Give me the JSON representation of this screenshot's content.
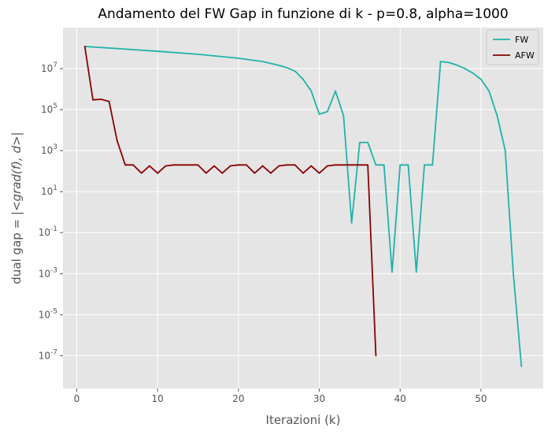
{
  "chart_data": {
    "type": "line",
    "title": "Andamento del FW Gap in funzione di k - p=0.8, alpha=1000",
    "xlabel": "Iterazioni (k)",
    "ylabel_prefix": "dual gap = |",
    "ylabel_math": "<grad(f), d>",
    "ylabel_suffix": "|",
    "x_scale": "linear",
    "y_scale": "log",
    "xlim": [
      -1.7,
      57.7
    ],
    "ylim_exponent": [
      -8.6,
      9.0
    ],
    "x_ticks": [
      0,
      10,
      20,
      30,
      40,
      50
    ],
    "y_ticks": [
      {
        "base": "10",
        "exp": "-7",
        "value": -7
      },
      {
        "base": "10",
        "exp": "-5",
        "value": -5
      },
      {
        "base": "10",
        "exp": "-3",
        "value": -3
      },
      {
        "base": "10",
        "exp": "-1",
        "value": -1
      },
      {
        "base": "10",
        "exp": "1",
        "value": 1
      },
      {
        "base": "10",
        "exp": "3",
        "value": 3
      },
      {
        "base": "10",
        "exp": "5",
        "value": 5
      },
      {
        "base": "10",
        "exp": "7",
        "value": 7
      }
    ],
    "grid": true,
    "legend_position": "top-right",
    "background": "#e5e5e5",
    "series": [
      {
        "name": "FW",
        "color": "#20b2aa",
        "x": [
          1,
          5,
          10,
          15,
          20,
          23,
          25,
          26,
          27,
          28,
          29,
          30,
          31,
          32,
          33,
          34,
          35,
          36,
          37,
          38,
          39,
          40,
          41,
          42,
          43,
          44,
          45,
          46,
          47,
          48,
          49,
          50,
          51,
          52,
          53,
          54,
          55
        ],
        "y": [
          120000000.0,
          95000000.0,
          70000000.0,
          50000000.0,
          32000000.0,
          22000000.0,
          14500000.0,
          11000000.0,
          7500000.0,
          3000000.0,
          800000.0,
          60000.0,
          80000.0,
          800000.0,
          50000.0,
          0.3,
          2500.0,
          2500.0,
          200,
          200,
          0.0012,
          200,
          200,
          0.0012,
          200,
          200,
          22000000.0,
          20000000.0,
          15000000.0,
          10000000.0,
          6000000.0,
          3000000.0,
          800000.0,
          50000.0,
          1000.0,
          0.001,
          3e-08
        ]
      },
      {
        "name": "AFW",
        "color": "#8b0000",
        "x": [
          1,
          2,
          3,
          4,
          5,
          6,
          7,
          8,
          9,
          10,
          11,
          12,
          13,
          14,
          15,
          16,
          17,
          18,
          19,
          20,
          21,
          22,
          23,
          24,
          25,
          26,
          27,
          28,
          29,
          30,
          31,
          32,
          33,
          34,
          35,
          36,
          37
        ],
        "y": [
          120000000.0,
          300000.0,
          320000.0,
          250000.0,
          3000.0,
          200,
          200,
          80,
          180,
          80,
          180,
          200,
          200,
          200,
          200,
          80,
          180,
          80,
          180,
          200,
          200,
          80,
          180,
          80,
          180,
          200,
          200,
          80,
          180,
          80,
          180,
          200,
          200,
          200,
          200,
          200,
          1e-07
        ]
      }
    ]
  }
}
